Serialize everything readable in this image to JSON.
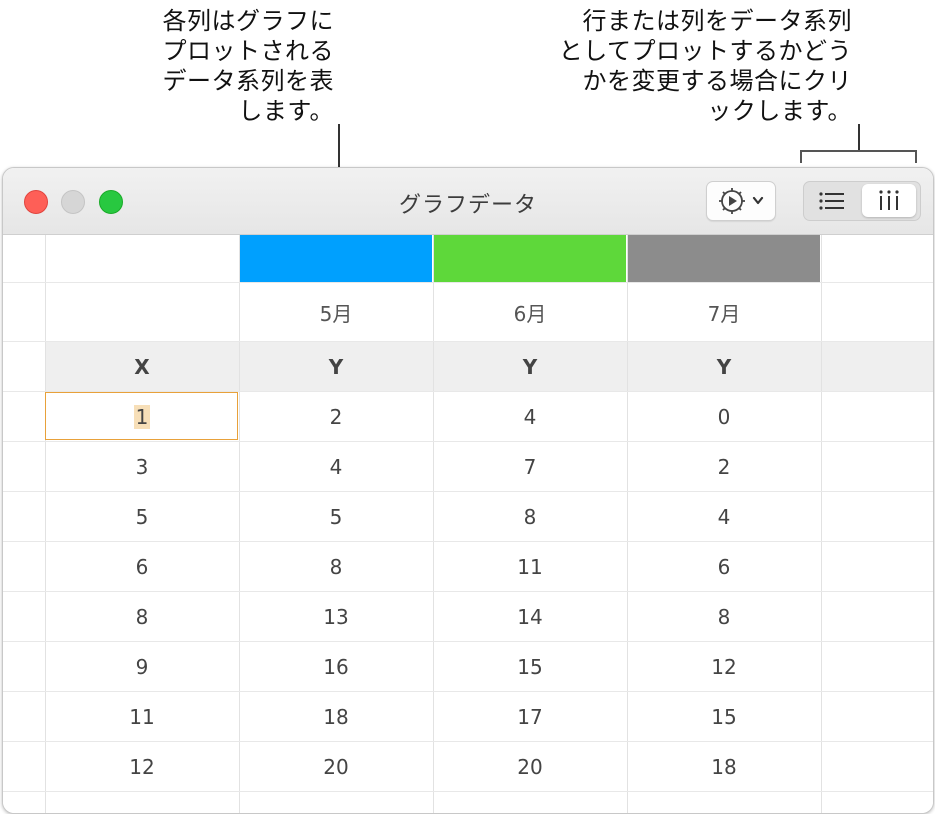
{
  "callouts": {
    "left": [
      "各列はグラフに",
      "プロットされる",
      "データ系列を表",
      "します。"
    ],
    "right": [
      "行または列をデータ系列",
      "としてプロットするかどう",
      "かを変更する場合にクリ",
      "ックします。"
    ]
  },
  "window": {
    "title": "グラフデータ",
    "action_icon": "gear-icon",
    "segment_rows_icon": "list-icon",
    "segment_cols_icon": "columns-icon"
  },
  "series_colors": [
    "#00a0fe",
    "#5ed83a",
    "#8c8c8c"
  ],
  "table": {
    "series_names": [
      "5月",
      "6月",
      "7月"
    ],
    "axis_headers": [
      "X",
      "Y",
      "Y",
      "Y"
    ],
    "rows": [
      [
        "1",
        "2",
        "4",
        "0"
      ],
      [
        "3",
        "4",
        "7",
        "2"
      ],
      [
        "5",
        "5",
        "8",
        "4"
      ],
      [
        "6",
        "8",
        "11",
        "6"
      ],
      [
        "8",
        "13",
        "14",
        "8"
      ],
      [
        "9",
        "16",
        "15",
        "12"
      ],
      [
        "11",
        "18",
        "17",
        "15"
      ],
      [
        "12",
        "20",
        "20",
        "18"
      ]
    ]
  }
}
